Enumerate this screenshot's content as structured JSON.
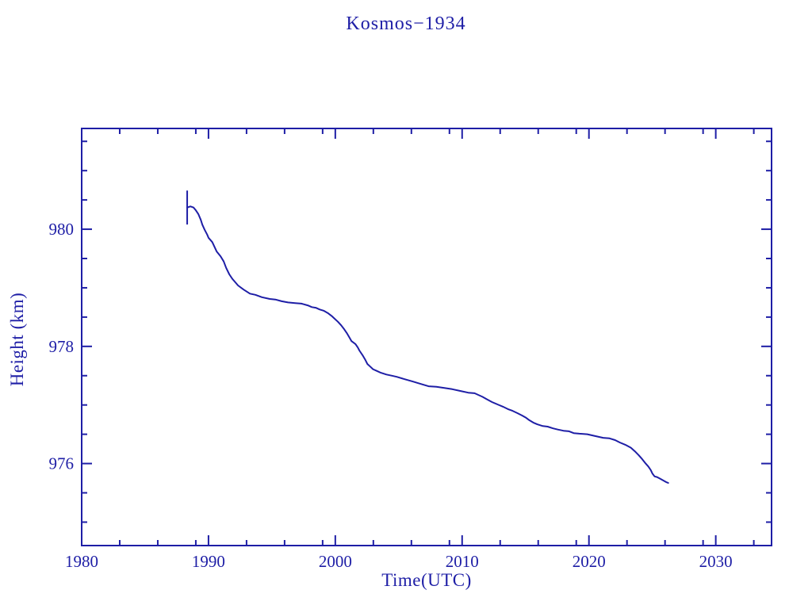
{
  "colors": {
    "ink": "#1e1ea6",
    "background": "#ffffff"
  },
  "chart_data": {
    "type": "line",
    "title": "Kosmos−1934",
    "xlabel": "Time(UTC)",
    "ylabel": "Height (km)",
    "grid": false,
    "legend": "none",
    "x_range": [
      1980,
      2034.4
    ],
    "y_range": [
      974.6,
      981.72
    ],
    "x_major_ticks": [
      1980,
      1990,
      2000,
      2010,
      2020,
      2030
    ],
    "x_major_labels": [
      "1980",
      "1990",
      "2000",
      "2010",
      "2020",
      "2030"
    ],
    "x_minor_ticks": [
      1983,
      1986,
      1989,
      1993,
      1996,
      1999,
      2003,
      2006,
      2009,
      2013,
      2016,
      2019,
      2023,
      2026,
      2029,
      2033
    ],
    "y_major_ticks": [
      976,
      978,
      980
    ],
    "y_major_labels": [
      "976",
      "978",
      "980"
    ],
    "y_minor_ticks": [
      975.0,
      975.5,
      976.5,
      977.0,
      977.5,
      978.5,
      979.0,
      979.5,
      980.5,
      981.0,
      981.5
    ],
    "start_error_bar": {
      "x": 1988.32,
      "y_low": 980.08,
      "y_high": 980.66
    },
    "series": [
      {
        "name": "orbit-height",
        "points": [
          [
            1988.32,
            980.37
          ],
          [
            1988.57,
            980.39
          ],
          [
            1988.82,
            980.37
          ],
          [
            1989.01,
            980.32
          ],
          [
            1989.2,
            980.26
          ],
          [
            1989.39,
            980.16
          ],
          [
            1989.51,
            980.08
          ],
          [
            1989.7,
            979.99
          ],
          [
            1989.89,
            979.91
          ],
          [
            1990.01,
            979.85
          ],
          [
            1990.3,
            979.78
          ],
          [
            1990.64,
            979.62
          ],
          [
            1990.95,
            979.54
          ],
          [
            1991.2,
            979.45
          ],
          [
            1991.39,
            979.34
          ],
          [
            1991.64,
            979.23
          ],
          [
            1991.89,
            979.15
          ],
          [
            1992.33,
            979.04
          ],
          [
            1992.77,
            978.97
          ],
          [
            1993.27,
            978.9
          ],
          [
            1993.7,
            978.88
          ],
          [
            1994.21,
            978.84
          ],
          [
            1994.83,
            978.81
          ],
          [
            1995.27,
            978.8
          ],
          [
            1995.77,
            978.77
          ],
          [
            1996.27,
            978.75
          ],
          [
            1996.83,
            978.74
          ],
          [
            1997.33,
            978.73
          ],
          [
            1997.83,
            978.7
          ],
          [
            1998.15,
            978.67
          ],
          [
            1998.46,
            978.66
          ],
          [
            1998.77,
            978.63
          ],
          [
            1999.08,
            978.61
          ],
          [
            1999.4,
            978.57
          ],
          [
            1999.71,
            978.52
          ],
          [
            1999.96,
            978.47
          ],
          [
            2000.21,
            978.42
          ],
          [
            2000.46,
            978.36
          ],
          [
            2000.71,
            978.29
          ],
          [
            2000.9,
            978.23
          ],
          [
            2001.09,
            978.16
          ],
          [
            2001.28,
            978.09
          ],
          [
            2001.59,
            978.04
          ],
          [
            2001.78,
            977.98
          ],
          [
            2001.9,
            977.93
          ],
          [
            2002.15,
            977.85
          ],
          [
            2002.34,
            977.78
          ],
          [
            2002.53,
            977.7
          ],
          [
            2002.78,
            977.65
          ],
          [
            2002.97,
            977.61
          ],
          [
            2003.28,
            977.58
          ],
          [
            2003.59,
            977.55
          ],
          [
            2004.03,
            977.52
          ],
          [
            2004.47,
            977.5
          ],
          [
            2004.84,
            977.48
          ],
          [
            2005.47,
            977.44
          ],
          [
            2006.1,
            977.4
          ],
          [
            2006.72,
            977.36
          ],
          [
            2007.35,
            977.32
          ],
          [
            2007.97,
            977.31
          ],
          [
            2008.6,
            977.29
          ],
          [
            2009.22,
            977.27
          ],
          [
            2009.85,
            977.24
          ],
          [
            2010.48,
            977.21
          ],
          [
            2010.98,
            977.2
          ],
          [
            2011.29,
            977.17
          ],
          [
            2011.6,
            977.14
          ],
          [
            2011.92,
            977.1
          ],
          [
            2012.35,
            977.05
          ],
          [
            2012.79,
            977.01
          ],
          [
            2013.23,
            976.97
          ],
          [
            2013.61,
            976.93
          ],
          [
            2013.98,
            976.9
          ],
          [
            2014.36,
            976.86
          ],
          [
            2014.73,
            976.82
          ],
          [
            2015.05,
            976.78
          ],
          [
            2015.3,
            976.74
          ],
          [
            2015.61,
            976.7
          ],
          [
            2015.92,
            976.67
          ],
          [
            2016.36,
            976.64
          ],
          [
            2016.74,
            976.63
          ],
          [
            2017.17,
            976.6
          ],
          [
            2017.55,
            976.58
          ],
          [
            2017.99,
            976.56
          ],
          [
            2018.43,
            976.55
          ],
          [
            2018.8,
            976.52
          ],
          [
            2019.24,
            976.51
          ],
          [
            2019.87,
            976.5
          ],
          [
            2020.49,
            976.47
          ],
          [
            2021.12,
            976.44
          ],
          [
            2021.62,
            976.43
          ],
          [
            2022.06,
            976.4
          ],
          [
            2022.43,
            976.36
          ],
          [
            2022.87,
            976.32
          ],
          [
            2023.31,
            976.27
          ],
          [
            2023.62,
            976.21
          ],
          [
            2023.93,
            976.14
          ],
          [
            2024.18,
            976.08
          ],
          [
            2024.43,
            976.01
          ],
          [
            2024.68,
            975.95
          ],
          [
            2024.87,
            975.89
          ],
          [
            2025.0,
            975.83
          ],
          [
            2025.18,
            975.78
          ],
          [
            2025.37,
            975.77
          ],
          [
            2025.62,
            975.74
          ],
          [
            2025.87,
            975.71
          ],
          [
            2026.12,
            975.68
          ],
          [
            2026.25,
            975.67
          ]
        ]
      }
    ]
  }
}
